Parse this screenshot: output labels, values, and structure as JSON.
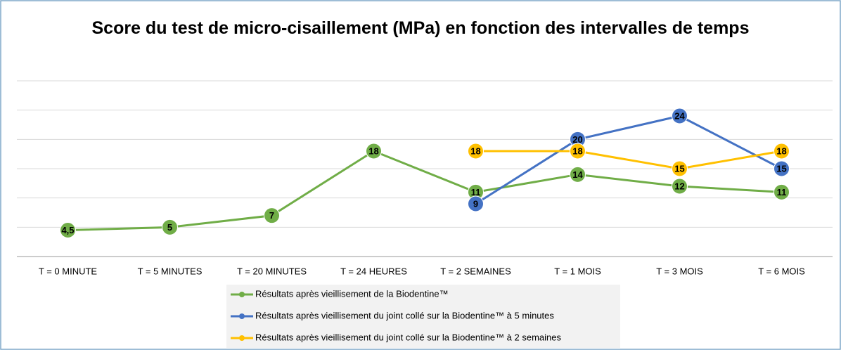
{
  "chart_data": {
    "type": "line",
    "title": "Score du test de micro-cisaillement (MPa) en fonction des intervalles de temps",
    "categories": [
      "T = 0 MINUTE",
      "T = 5 MINUTES",
      "T = 20 MINUTES",
      "T = 24 HEURES",
      "T = 2 SEMAINES",
      "T = 1 MOIS",
      "T = 3 MOIS",
      "T = 6 MOIS"
    ],
    "series": [
      {
        "name": "Résultats après vieillisement de la Biodentine™",
        "color": "#70ad47",
        "values": [
          4.5,
          5,
          7,
          18,
          11,
          14,
          12,
          11
        ],
        "value_labels": [
          "4,5",
          "5",
          "7",
          "18",
          "11",
          "14",
          "12",
          "11"
        ]
      },
      {
        "name": "Résultats après vieillisement du joint collé sur la Biodentine™ à 5 minutes",
        "color": "#4472c4",
        "values": [
          null,
          null,
          null,
          null,
          9,
          20,
          24,
          15
        ]
      },
      {
        "name": "Résultats après vieillisement du joint collé sur la Biodentine™ à 2 semaines",
        "color": "#ffc000",
        "values": [
          null,
          null,
          null,
          null,
          18,
          18,
          15,
          18
        ]
      }
    ],
    "ylim": [
      0,
      30
    ],
    "yticks": [
      0,
      5,
      10,
      15,
      20,
      25,
      30
    ],
    "grid": true,
    "legend": "bottom"
  }
}
